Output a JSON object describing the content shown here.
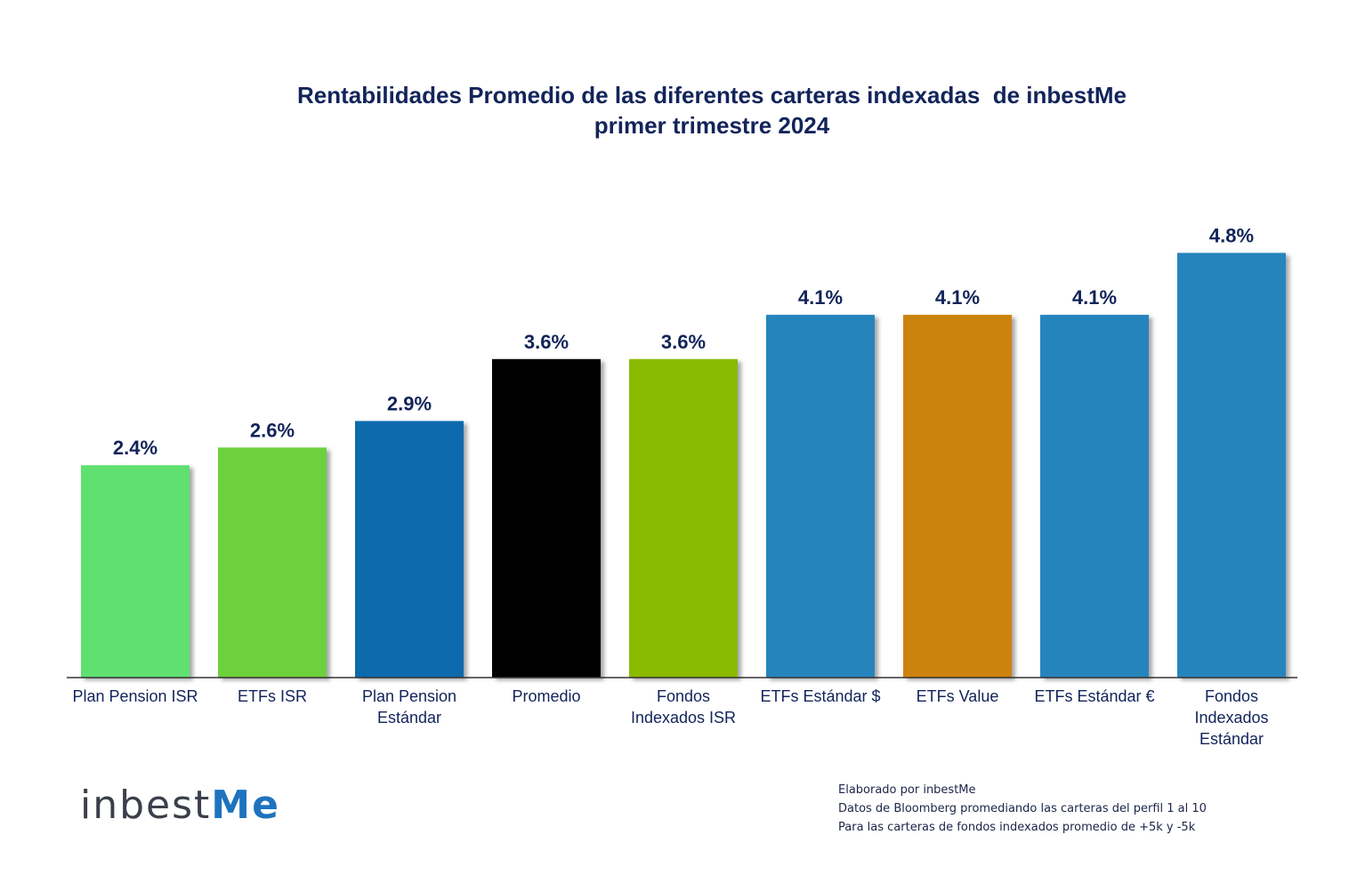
{
  "chart_data": {
    "type": "bar",
    "title": "Rentabilidades Promedio de las diferentes carteras indexadas  de inbestMe",
    "subtitle": "primer trimestre 2024",
    "categories": [
      [
        "Plan Pension ISR"
      ],
      [
        "ETFs ISR"
      ],
      [
        "Plan Pension",
        "Estándar"
      ],
      [
        "Promedio"
      ],
      [
        "Fondos",
        "Indexados ISR"
      ],
      [
        "ETFs Estándar  $"
      ],
      [
        "ETFs Value"
      ],
      [
        "ETFs Estándar €"
      ],
      [
        "Fondos",
        "Indexados",
        "Estándar"
      ]
    ],
    "values": [
      2.4,
      2.6,
      2.9,
      3.6,
      3.6,
      4.1,
      4.1,
      4.1,
      4.8
    ],
    "data_labels": [
      "2.4%",
      "2.6%",
      "2.9%",
      "3.6%",
      "3.6%",
      "4.1%",
      "4.1%",
      "4.1%",
      "4.8%"
    ],
    "colors": [
      "#61e06f",
      "#6dd13d",
      "#0a6aad",
      "#000000",
      "#8abb00",
      "#2584bd",
      "#cc8310",
      "#2584bd",
      "#2584bd"
    ],
    "ylim": [
      0,
      5
    ],
    "grid": false,
    "xlabel": "",
    "ylabel": ""
  },
  "branding": {
    "logo_text_prefix": "inbest",
    "logo_text_suffix": "Me",
    "brand_color": "#1e73be"
  },
  "footnotes": [
    "Elaborado por inbestMe",
    "Datos de Bloomberg promediando las carteras del perfil 1 al 10",
    "Para las carteras de fondos indexados promedio de +5k y -5k"
  ]
}
